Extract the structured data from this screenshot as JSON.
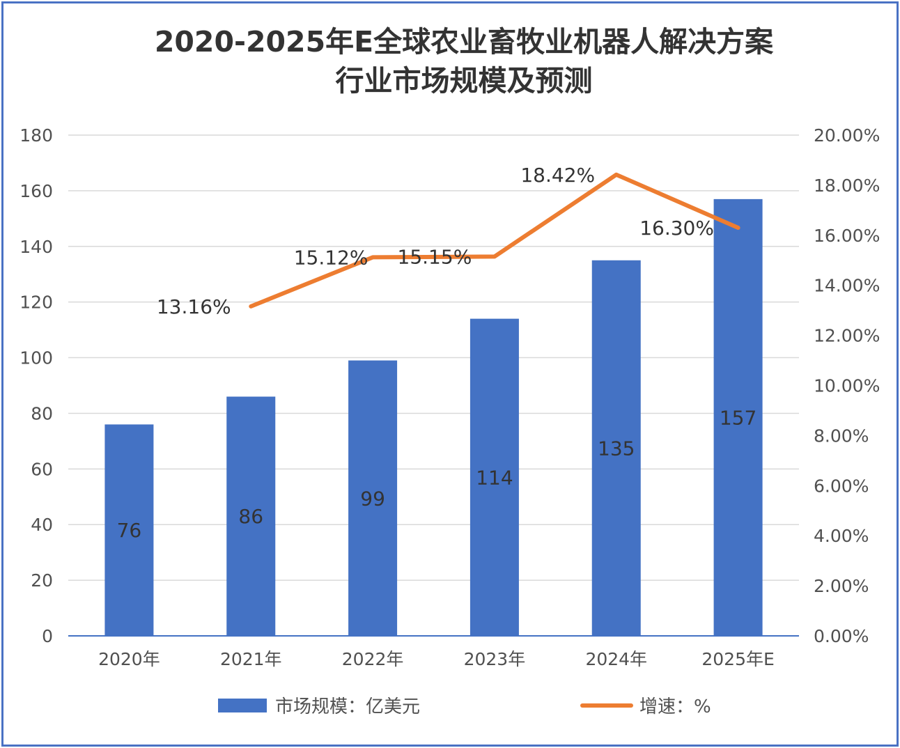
{
  "chart_data": {
    "type": "bar",
    "title_line1": "2020-2025年E全球农业畜牧业机器人解决方案",
    "title_line2": "行业市场规模及预测",
    "categories": [
      "2020年",
      "2021年",
      "2022年",
      "2023年",
      "2024年",
      "2025年E"
    ],
    "series": [
      {
        "name": "市场规模：亿美元",
        "type": "bar",
        "axis": "left",
        "color": "#4472c4",
        "values": [
          76,
          86,
          99,
          114,
          135,
          157
        ],
        "labels": [
          "76",
          "86",
          "99",
          "114",
          "135",
          "157"
        ]
      },
      {
        "name": "增速：%",
        "type": "line",
        "axis": "right",
        "color": "#ed7d31",
        "values": [
          null,
          13.16,
          15.12,
          15.15,
          18.42,
          16.3
        ],
        "labels": [
          "",
          "13.16%",
          "15.12%",
          "15.15%",
          "18.42%",
          "16.30%"
        ]
      }
    ],
    "y_left": {
      "min": 0,
      "max": 180,
      "ticks": [
        "0",
        "20",
        "40",
        "60",
        "80",
        "100",
        "120",
        "140",
        "160",
        "180"
      ]
    },
    "y_right": {
      "min": 0,
      "max": 20,
      "ticks": [
        "0.00%",
        "2.00%",
        "4.00%",
        "6.00%",
        "8.00%",
        "10.00%",
        "12.00%",
        "14.00%",
        "16.00%",
        "18.00%",
        "20.00%"
      ]
    },
    "grid": true,
    "legend_position": "bottom"
  },
  "colors": {
    "border": "#4a72c4",
    "bar": "#4472c4",
    "line": "#ed7d31",
    "grid": "#d9d9d9"
  }
}
